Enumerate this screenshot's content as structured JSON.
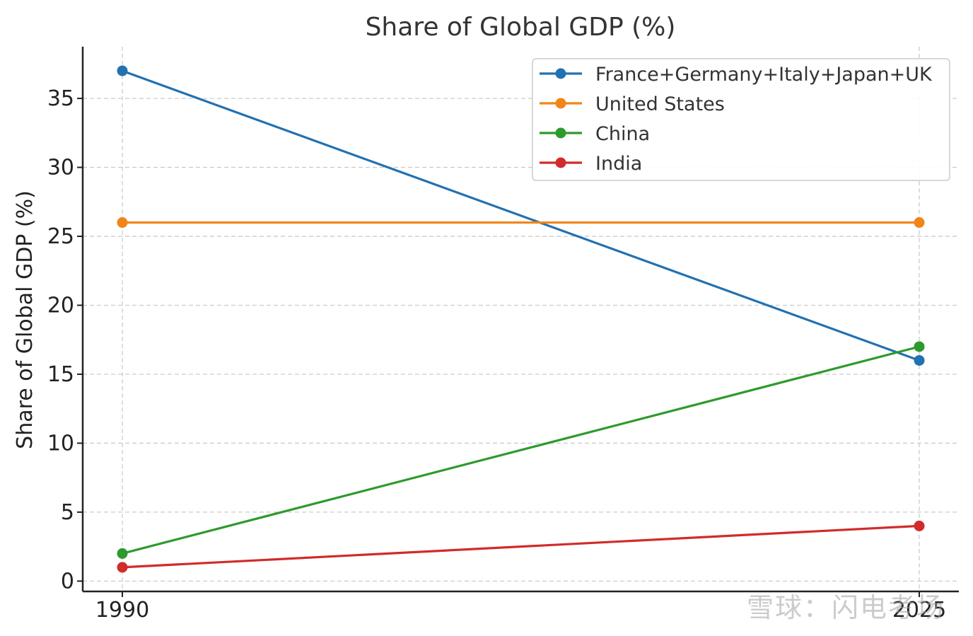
{
  "chart_data": {
    "type": "line",
    "title": "Share of Global GDP (%)",
    "xlabel": "",
    "ylabel": "Share of Global GDP (%)",
    "x": [
      "1990",
      "2025"
    ],
    "ylim": [
      -0.75,
      38.75
    ],
    "yticks": [
      0,
      5,
      10,
      15,
      20,
      25,
      30,
      35
    ],
    "grid": true,
    "legend_position": "top-right",
    "series": [
      {
        "name": "France+Germany+Italy+Japan+UK",
        "values": [
          37,
          16
        ],
        "color": "#2271b1"
      },
      {
        "name": "United States",
        "values": [
          26,
          26
        ],
        "color": "#f28518"
      },
      {
        "name": "China",
        "values": [
          2,
          17
        ],
        "color": "#2e9a2e"
      },
      {
        "name": "India",
        "values": [
          1,
          4
        ],
        "color": "#d12b2b"
      }
    ]
  },
  "watermark": "雪球：闪电考场"
}
